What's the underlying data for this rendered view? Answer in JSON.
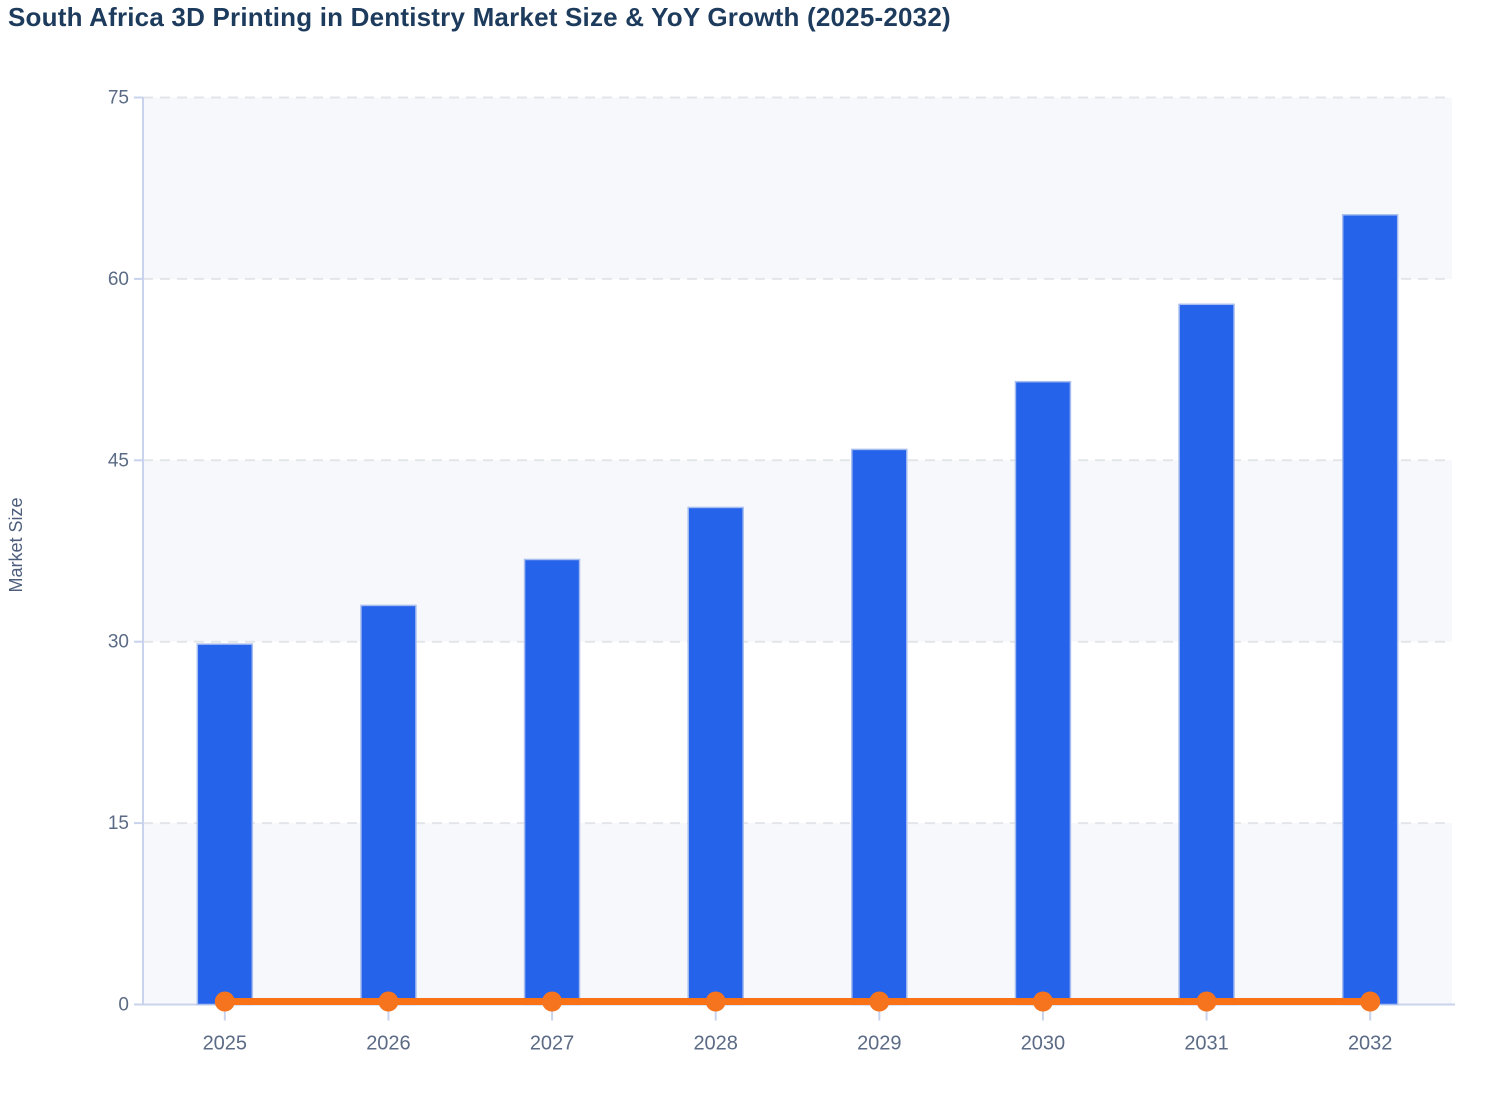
{
  "title": "South Africa 3D Printing in Dentistry Market Size & YoY Growth (2025-2032)",
  "chart_data": {
    "type": "bar",
    "title": "South Africa 3D Printing in Dentistry Market Size & YoY Growth (2025-2032)",
    "categories": [
      "2025",
      "2026",
      "2027",
      "2028",
      "2029",
      "2030",
      "2031",
      "2032"
    ],
    "series": [
      {
        "name": "Market Size",
        "type": "bar",
        "color": "#2563eb",
        "values": [
          29.8,
          33.0,
          36.8,
          41.1,
          45.9,
          51.5,
          57.9,
          65.3
        ]
      },
      {
        "name": "YoY Growth",
        "type": "line",
        "color": "#f97316",
        "values": [
          0.12,
          0.12,
          0.12,
          0.12,
          0.12,
          0.12,
          0.12,
          0.12
        ],
        "note": "renders as a flat orange line with round markers just above 0 on the Market Size axis"
      }
    ],
    "xlabel": "",
    "ylabel": "Market Size",
    "ylim": [
      0,
      75
    ],
    "yticks": [
      0,
      15,
      30,
      45,
      60,
      75
    ],
    "grid": "horizontal dashed gridlines at each y tick",
    "plot_bands": "alternating horizontal bands every 15 units: 0-15, 30-45, 60-75 shaded",
    "legend_position": "none"
  },
  "colors": {
    "bar_fill": "#2563eb",
    "bar_stroke": "#a7bdf0",
    "line": "#f97316",
    "marker": "#f7741e",
    "title_text": "#1d3b5c",
    "tick_text": "#5b6b85",
    "axis_label_text": "#4d5e7c",
    "axis_line": "#c9d3ed",
    "gridline": "#e2e5ea",
    "band_fill": "#f7f8fb",
    "background": "#ffffff"
  }
}
